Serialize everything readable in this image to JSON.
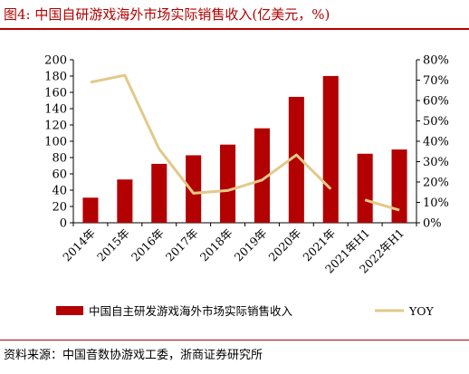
{
  "header": {
    "figure_label": "图4:",
    "title": "中国自研游戏海外市场实际销售收入(亿美元，%)"
  },
  "footer": {
    "source": "资料来源：中国音数协游戏工委，浙商证券研究所"
  },
  "chart_data": {
    "type": "bar",
    "categories": [
      "2014年",
      "2015年",
      "2016年",
      "2017年",
      "2018年",
      "2019年",
      "2020年",
      "2021年",
      "2021年H1",
      "2022年H1"
    ],
    "y_left": {
      "ticks": [
        "0",
        "20",
        "40",
        "60",
        "80",
        "100",
        "120",
        "140",
        "160",
        "180",
        "200"
      ],
      "range": [
        0,
        200
      ]
    },
    "y_right": {
      "ticks": [
        "0%",
        "10%",
        "20%",
        "30%",
        "40%",
        "50%",
        "60%",
        "70%",
        "80%"
      ],
      "range": [
        0,
        80
      ]
    },
    "series": [
      {
        "name": "中国自主研发游戏海外市场实际销售收入",
        "type": "bar",
        "axis": "left",
        "color": "#b30000",
        "values": [
          30.8,
          53.1,
          72.3,
          82.8,
          95.9,
          115.9,
          154.5,
          180.1,
          84.7,
          89.9
        ]
      },
      {
        "name": "YOY",
        "type": "line",
        "axis": "right",
        "color": "#e2c98a",
        "values": [
          69.0,
          72.4,
          36.2,
          14.5,
          15.8,
          21.0,
          33.3,
          16.6,
          11.2,
          6.2
        ],
        "segments": [
          [
            0,
            7
          ],
          [
            8,
            9
          ]
        ]
      }
    ],
    "legend_position": "bottom"
  }
}
